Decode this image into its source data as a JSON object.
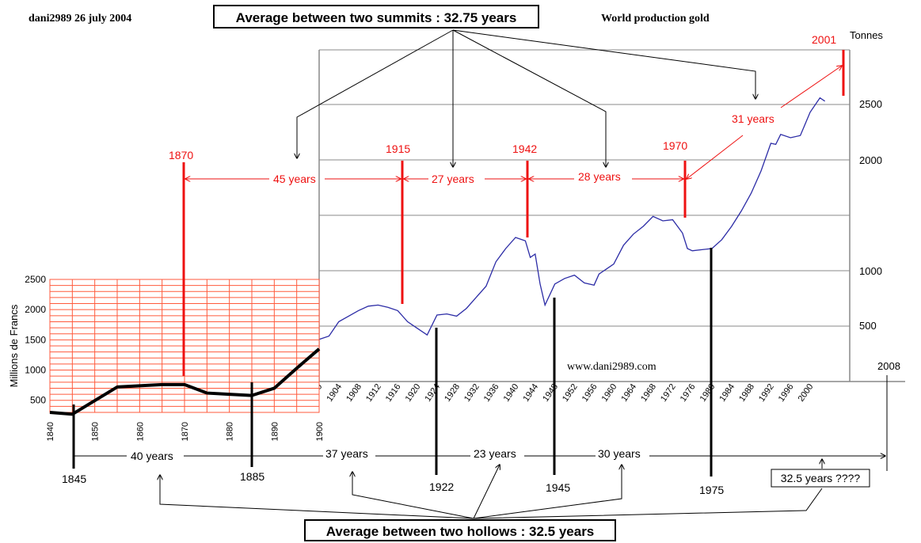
{
  "header": {
    "author_date": "dani2989  26 july 2004",
    "chart_title": "World production gold",
    "website": "www.dani2989.com"
  },
  "colors": {
    "grid_left": "#ff5a3c",
    "series_left": "#000000",
    "series_right": "#2c2ca6",
    "summit_marker": "#ee1111",
    "hollow_marker": "#000000",
    "annotation_red": "#ee1111"
  },
  "chart_data": [
    {
      "type": "line",
      "ylabel": "Millions de Francs",
      "ylim": [
        300,
        2500
      ],
      "xlim": [
        1840,
        1900
      ],
      "yticks": [
        500,
        1000,
        1500,
        2000,
        2500
      ],
      "xticks": [
        1840,
        1850,
        1860,
        1870,
        1880,
        1890,
        1900
      ],
      "grid": true,
      "x": [
        1840,
        1845,
        1855,
        1865,
        1870,
        1875,
        1880,
        1885,
        1890,
        1895,
        1900
      ],
      "values": [
        300,
        270,
        720,
        760,
        760,
        620,
        600,
        580,
        700,
        1030,
        1350
      ]
    },
    {
      "type": "line",
      "ylabel": "Tonnes",
      "xlim": [
        1900,
        2008
      ],
      "ytick_labels": [
        "500",
        "1000",
        "2000",
        "2500"
      ],
      "xticks": [
        1900,
        1904,
        1908,
        1912,
        1916,
        1920,
        1924,
        1928,
        1932,
        1936,
        1940,
        1944,
        1948,
        1952,
        1956,
        1960,
        1964,
        1968,
        1972,
        1976,
        1980,
        1984,
        1988,
        1992,
        1996,
        2000
      ],
      "grid": true,
      "x": [
        1900,
        1902,
        1904,
        1906,
        1908,
        1910,
        1912,
        1914,
        1916,
        1918,
        1920,
        1922,
        1924,
        1926,
        1928,
        1930,
        1932,
        1934,
        1936,
        1938,
        1940,
        1942,
        1943,
        1944,
        1945,
        1946,
        1948,
        1950,
        1952,
        1954,
        1956,
        1957,
        1960,
        1962,
        1964,
        1966,
        1968,
        1970,
        1972,
        1974,
        1975,
        1976,
        1978,
        1980,
        1982,
        1984,
        1986,
        1988,
        1990,
        1992,
        1993,
        1994,
        1996,
        1998,
        2000,
        2002,
        2003
      ],
      "values": [
        380,
        410,
        540,
        590,
        640,
        680,
        690,
        670,
        640,
        540,
        480,
        420,
        600,
        610,
        590,
        660,
        760,
        860,
        1080,
        1200,
        1300,
        1270,
        1120,
        1150,
        880,
        690,
        880,
        930,
        960,
        890,
        870,
        970,
        1060,
        1230,
        1330,
        1400,
        1490,
        1450,
        1460,
        1340,
        1200,
        1180,
        1190,
        1200,
        1280,
        1400,
        1540,
        1700,
        1900,
        2150,
        2140,
        2230,
        2200,
        2220,
        2430,
        2560,
        2530
      ]
    }
  ],
  "labels": {
    "tonnes": "Tonnes",
    "y2500": "2500",
    "y2000": "2000",
    "y1000": "1000",
    "y500": "500",
    "year2008": "2008"
  },
  "summits": [
    {
      "year": "1870",
      "gap": "45 years"
    },
    {
      "year": "1915",
      "gap": "27 years"
    },
    {
      "year": "1942",
      "gap": "28 years"
    },
    {
      "year": "1970",
      "gap": "31 years"
    },
    {
      "year": "2001"
    }
  ],
  "hollows": [
    {
      "year": "1845",
      "gap": "40 years"
    },
    {
      "year": "1885",
      "gap": "37 years"
    },
    {
      "year": "1922",
      "gap": "23 years"
    },
    {
      "year": "1945",
      "gap": "30 years"
    },
    {
      "year": "1975"
    }
  ],
  "boxes": {
    "summits_avg": "Average between two summits : 32.75 years",
    "hollows_avg": "Average between two hollows : 32.5 years",
    "forecast": "32.5 years ????"
  }
}
